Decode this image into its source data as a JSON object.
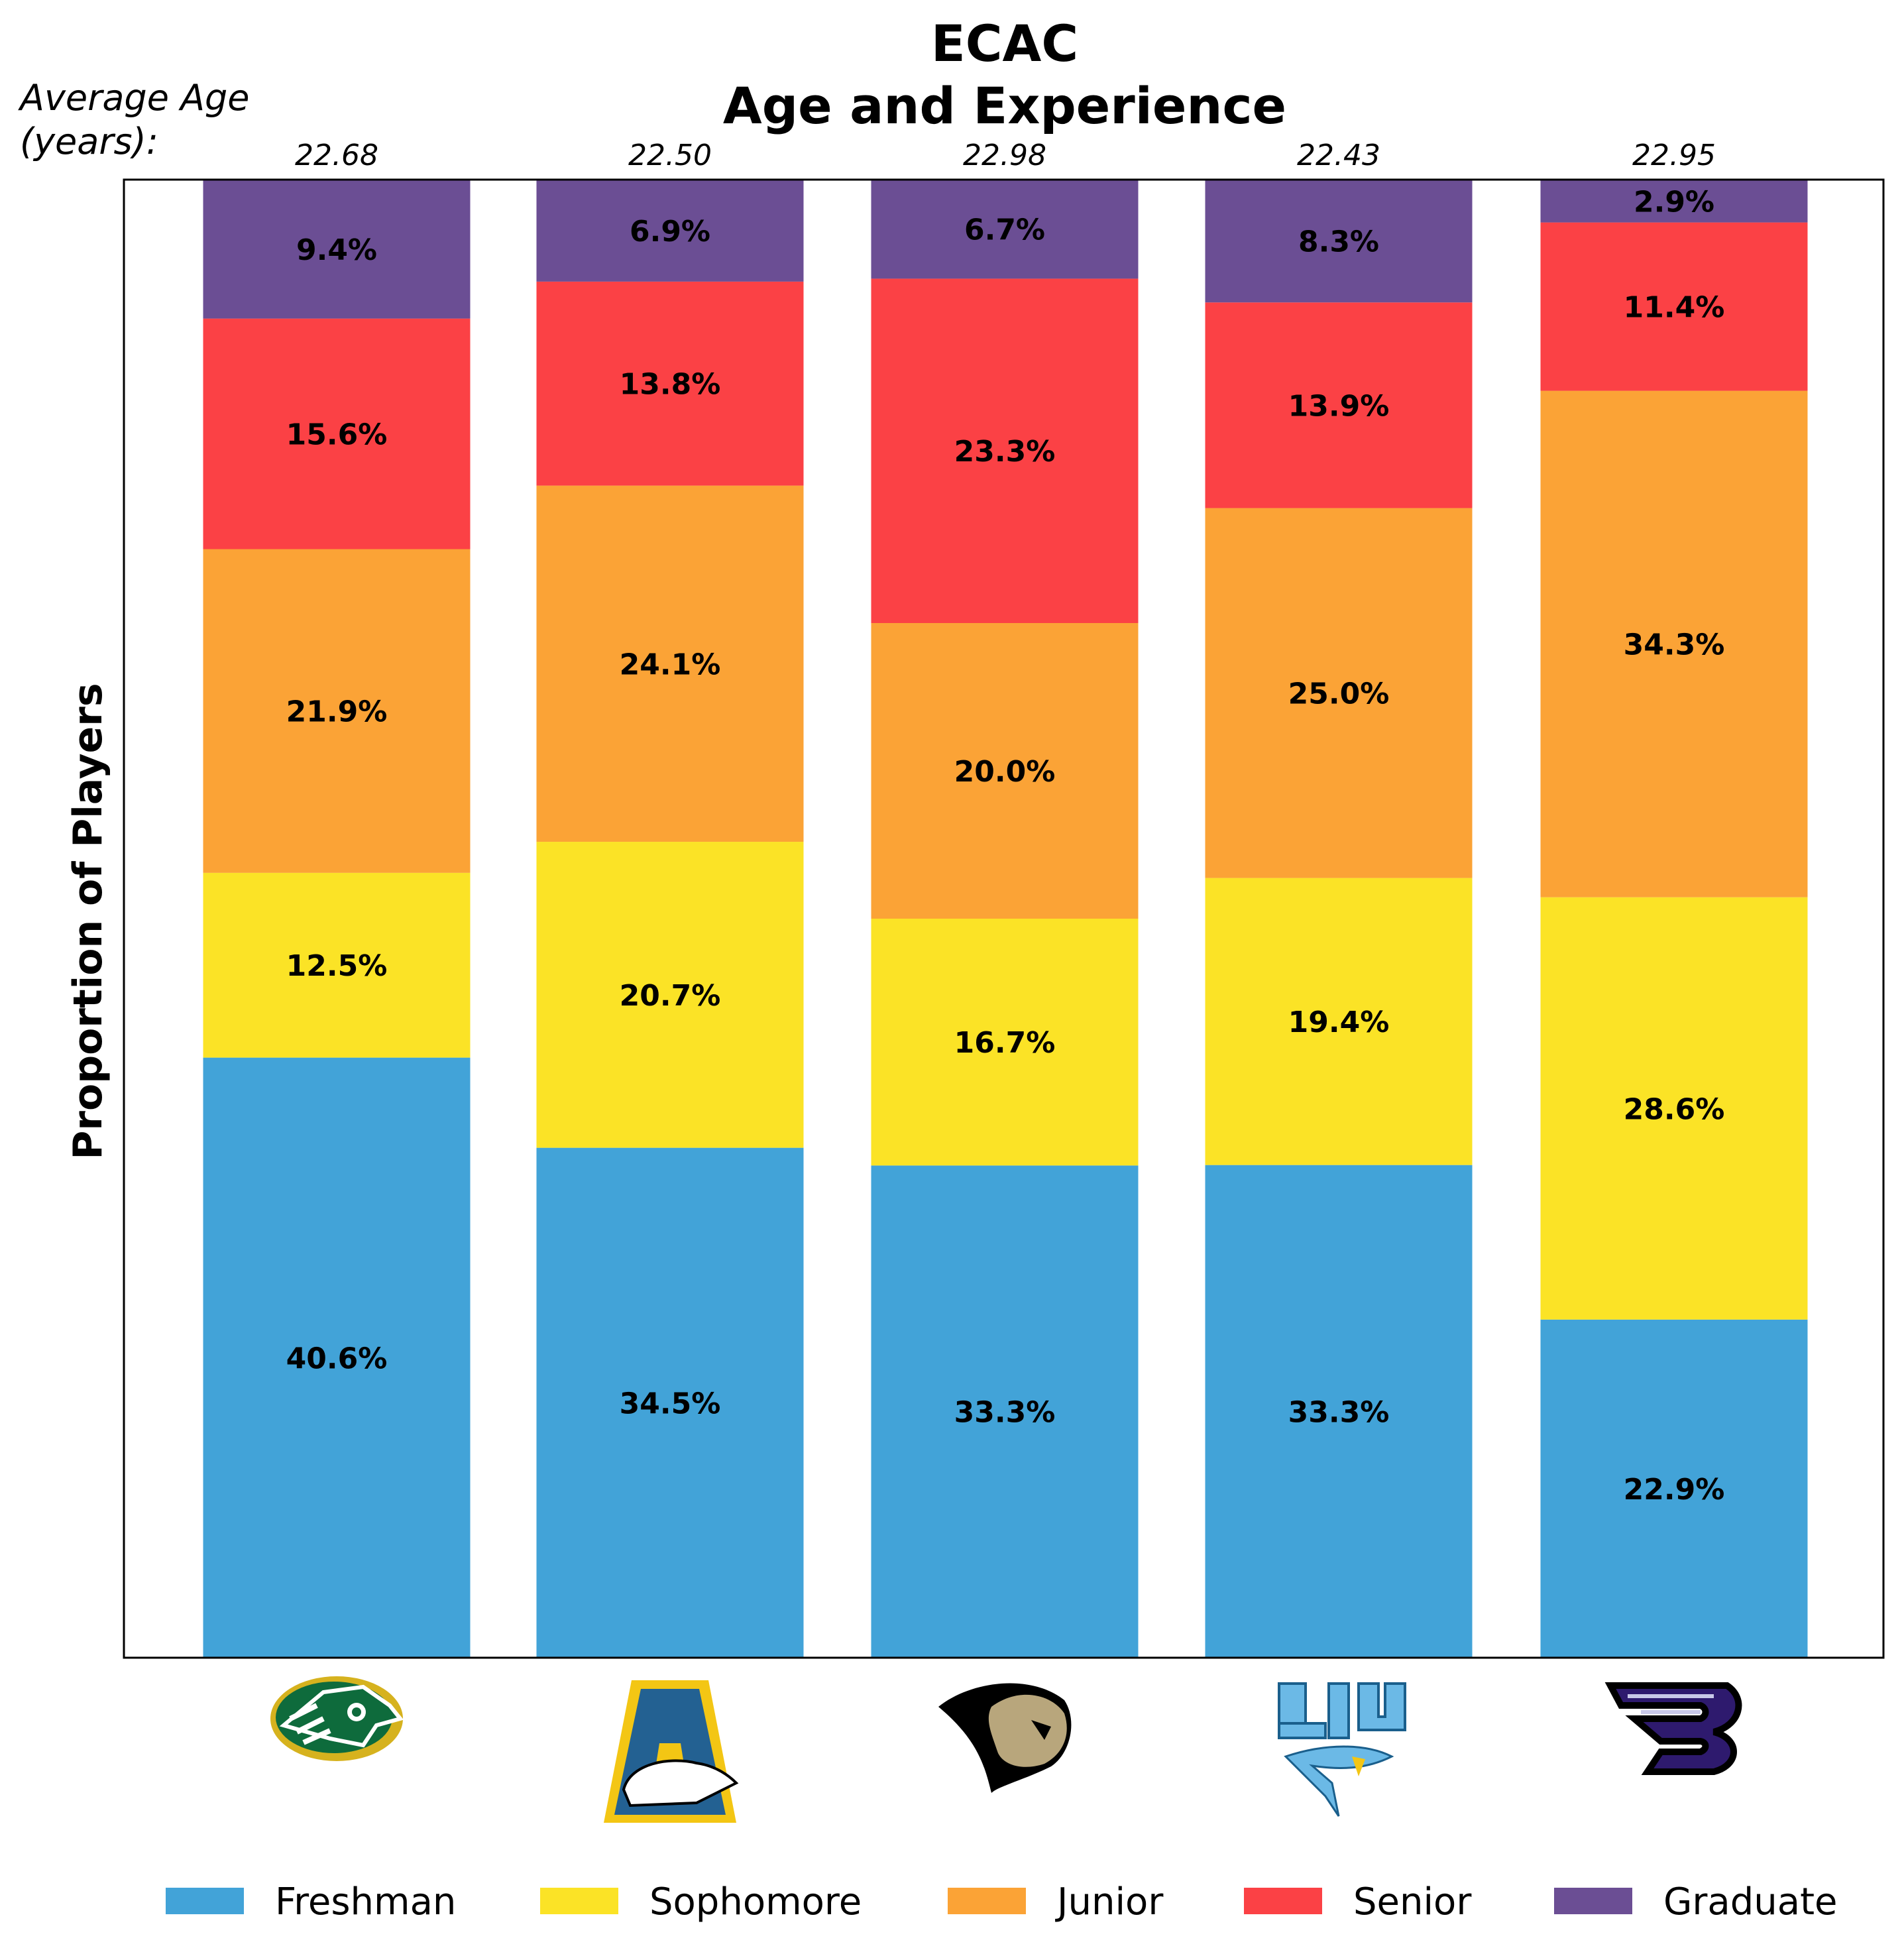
{
  "chart_data": {
    "type": "bar",
    "stacked": true,
    "title_line1": "ECAC",
    "title_line2": "Age and Experience",
    "avg_age_label_line1": "Average Age",
    "avg_age_label_line2": "(years):",
    "ylabel": "Proportion of Players",
    "ylim": [
      0,
      100
    ],
    "legend_position": "bottom",
    "categories": [
      "Alaska Anchorage",
      "Alaska",
      "Lindenwood",
      "LIU",
      "Stonehill"
    ],
    "average_age": [
      "22.68",
      "22.50",
      "22.98",
      "22.43",
      "22.95"
    ],
    "series": [
      {
        "name": "Freshman",
        "color": "#42a3d8",
        "values": [
          40.6,
          34.5,
          33.3,
          33.3,
          22.9
        ],
        "labels": [
          "40.6%",
          "34.5%",
          "33.3%",
          "33.3%",
          "22.9%"
        ]
      },
      {
        "name": "Sophomore",
        "color": "#fbe326",
        "values": [
          12.5,
          20.7,
          16.7,
          19.4,
          28.6
        ],
        "labels": [
          "12.5%",
          "20.7%",
          "16.7%",
          "19.4%",
          "28.6%"
        ]
      },
      {
        "name": "Junior",
        "color": "#fba336",
        "values": [
          21.9,
          24.1,
          20.0,
          25.0,
          34.3
        ],
        "labels": [
          "21.9%",
          "24.1%",
          "20.0%",
          "25.0%",
          "34.3%"
        ]
      },
      {
        "name": "Senior",
        "color": "#fb4145",
        "values": [
          15.6,
          13.8,
          23.3,
          13.9,
          11.4
        ],
        "labels": [
          "15.6%",
          "13.8%",
          "23.3%",
          "13.9%",
          "11.4%"
        ]
      },
      {
        "name": "Graduate",
        "color": "#6b4e94",
        "values": [
          9.4,
          6.9,
          6.7,
          8.3,
          2.9
        ],
        "labels": [
          "9.4%",
          "6.9%",
          "6.7%",
          "8.3%",
          "2.9%"
        ]
      }
    ],
    "logos": [
      "alaska-anchorage-seawolves-logo",
      "alaska-nanooks-logo",
      "lindenwood-lions-logo",
      "liu-sharks-logo",
      "stonehill-skyhawks-logo"
    ]
  }
}
